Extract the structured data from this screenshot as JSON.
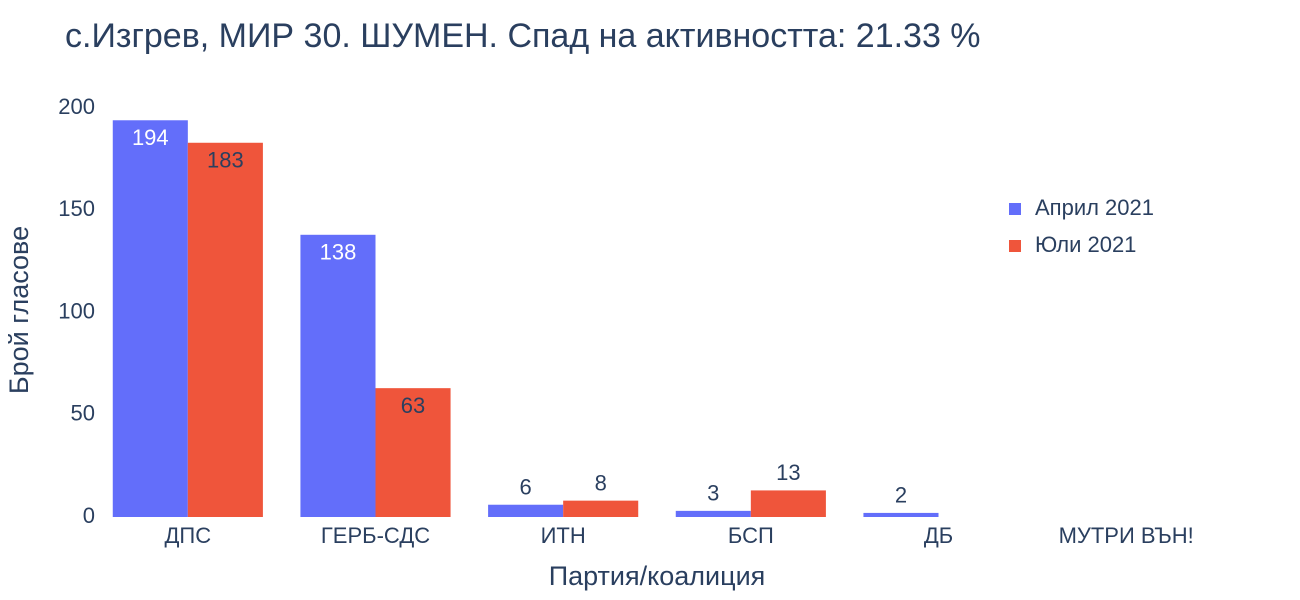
{
  "chart_data": {
    "type": "bar",
    "title": "с.Изгрев, МИР 30. ШУМЕН. Спад на активността: 21.33 %",
    "x_label": "Партия/коалиция",
    "y_label": "Брой гласове",
    "categories": [
      "ДПС",
      "ГЕРБ-СДС",
      "ИТН",
      "БСП",
      "ДБ",
      "МУТРИ ВЪН!"
    ],
    "series": [
      {
        "name": "Април 2021",
        "color": "#636efa",
        "values": [
          194,
          138,
          6,
          3,
          2,
          null
        ]
      },
      {
        "name": "Юли 2021",
        "color": "#EF553B",
        "values": [
          183,
          63,
          8,
          13,
          null,
          null
        ]
      }
    ],
    "ylim": [
      0,
      204
    ],
    "yticks": [
      0,
      50,
      100,
      150,
      200
    ],
    "grid": false,
    "legend": "upper right"
  }
}
